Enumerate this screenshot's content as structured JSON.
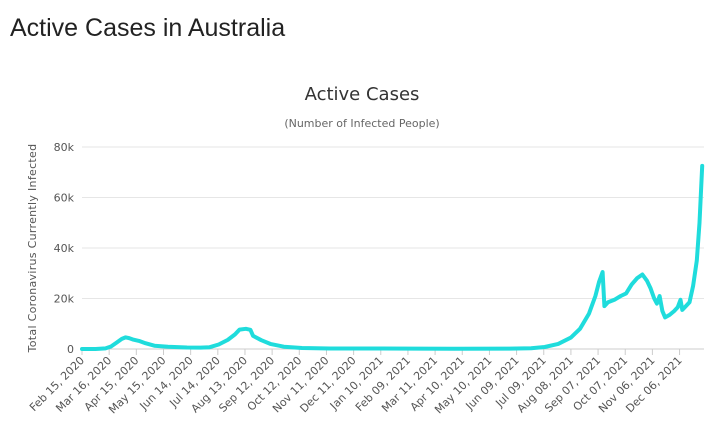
{
  "page": {
    "title": "Active Cases in Australia"
  },
  "chart_data": {
    "type": "line",
    "title": "Active Cases",
    "subtitle": "(Number of Infected People)",
    "xlabel": "",
    "ylabel": "Total Coronavirus Currently Infected",
    "ylim": [
      0,
      80000
    ],
    "y_ticks": [
      0,
      20000,
      40000,
      60000,
      80000
    ],
    "y_tick_labels": [
      "0",
      "20k",
      "40k",
      "60k",
      "80k"
    ],
    "x_range": [
      "2020-02-15",
      "2022-01-02"
    ],
    "x_ticks": [
      "2020-02-15",
      "2020-03-16",
      "2020-04-15",
      "2020-05-15",
      "2020-06-14",
      "2020-07-14",
      "2020-08-13",
      "2020-09-12",
      "2020-10-12",
      "2020-11-11",
      "2020-12-11",
      "2021-01-10",
      "2021-02-09",
      "2021-03-11",
      "2021-04-10",
      "2021-05-10",
      "2021-06-09",
      "2021-07-09",
      "2021-08-08",
      "2021-09-07",
      "2021-10-07",
      "2021-11-06",
      "2021-12-06"
    ],
    "x_tick_labels": [
      "Feb 15, 2020",
      "Mar 16, 2020",
      "Apr 15, 2020",
      "May 15, 2020",
      "Jun 14, 2020",
      "Jul 14, 2020",
      "Aug 13, 2020",
      "Sep 12, 2020",
      "Oct 12, 2020",
      "Nov 11, 2020",
      "Dec 11, 2020",
      "Jan 10, 2021",
      "Feb 09, 2021",
      "Mar 11, 2021",
      "Apr 10, 2021",
      "May 10, 2021",
      "Jun 09, 2021",
      "Jul 09, 2021",
      "Aug 08, 2021",
      "Sep 07, 2021",
      "Oct 07, 2021",
      "Nov 06, 2021",
      "Dec 06, 2021"
    ],
    "grid": true,
    "legend": "none",
    "series": [
      {
        "color": "#1fdcdc",
        "points": [
          [
            "2020-02-15",
            10
          ],
          [
            "2020-03-01",
            15
          ],
          [
            "2020-03-12",
            250
          ],
          [
            "2020-03-18",
            1000
          ],
          [
            "2020-03-24",
            2500
          ],
          [
            "2020-03-30",
            4000
          ],
          [
            "2020-04-03",
            4600
          ],
          [
            "2020-04-07",
            4300
          ],
          [
            "2020-04-12",
            3700
          ],
          [
            "2020-04-18",
            3200
          ],
          [
            "2020-04-25",
            2300
          ],
          [
            "2020-05-05",
            1300
          ],
          [
            "2020-05-20",
            900
          ],
          [
            "2020-06-10",
            600
          ],
          [
            "2020-06-25",
            550
          ],
          [
            "2020-07-05",
            700
          ],
          [
            "2020-07-15",
            1800
          ],
          [
            "2020-07-25",
            3600
          ],
          [
            "2020-08-02",
            5800
          ],
          [
            "2020-08-07",
            7700
          ],
          [
            "2020-08-14",
            8000
          ],
          [
            "2020-08-19",
            7600
          ],
          [
            "2020-08-22",
            5200
          ],
          [
            "2020-08-31",
            3500
          ],
          [
            "2020-09-10",
            2000
          ],
          [
            "2020-09-25",
            900
          ],
          [
            "2020-10-15",
            400
          ],
          [
            "2020-11-15",
            200
          ],
          [
            "2021-01-01",
            180
          ],
          [
            "2021-02-15",
            150
          ],
          [
            "2021-04-01",
            130
          ],
          [
            "2021-06-01",
            140
          ],
          [
            "2021-06-25",
            300
          ],
          [
            "2021-07-10",
            800
          ],
          [
            "2021-07-25",
            2000
          ],
          [
            "2021-08-08",
            4500
          ],
          [
            "2021-08-18",
            8000
          ],
          [
            "2021-08-28",
            14000
          ],
          [
            "2021-09-04",
            21000
          ],
          [
            "2021-09-08",
            26500
          ],
          [
            "2021-09-12",
            30500
          ],
          [
            "2021-09-14",
            17000
          ],
          [
            "2021-09-18",
            18500
          ],
          [
            "2021-09-25",
            19500
          ],
          [
            "2021-10-02",
            21000
          ],
          [
            "2021-10-08",
            22000
          ],
          [
            "2021-10-14",
            25500
          ],
          [
            "2021-10-20",
            28000
          ],
          [
            "2021-10-26",
            29500
          ],
          [
            "2021-10-31",
            27000
          ],
          [
            "2021-11-04",
            24000
          ],
          [
            "2021-11-08",
            20000
          ],
          [
            "2021-11-11",
            18000
          ],
          [
            "2021-11-14",
            21000
          ],
          [
            "2021-11-17",
            15000
          ],
          [
            "2021-11-20",
            12500
          ],
          [
            "2021-11-25",
            13500
          ],
          [
            "2021-11-30",
            15000
          ],
          [
            "2021-12-04",
            16500
          ],
          [
            "2021-12-07",
            19500
          ],
          [
            "2021-12-09",
            15500
          ],
          [
            "2021-12-13",
            17000
          ],
          [
            "2021-12-17",
            18500
          ],
          [
            "2021-12-21",
            25000
          ],
          [
            "2021-12-25",
            35000
          ],
          [
            "2021-12-28",
            50000
          ],
          [
            "2021-12-31",
            72500
          ]
        ]
      }
    ]
  }
}
